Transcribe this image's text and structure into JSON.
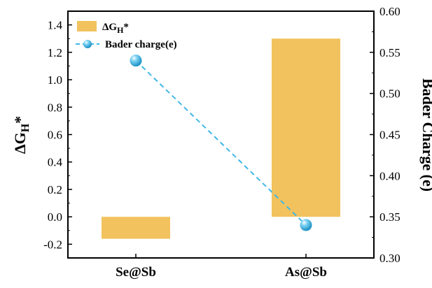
{
  "chart_data": {
    "type": "bar",
    "categories": [
      "Se@Sb",
      "As@Sb"
    ],
    "series": [
      {
        "name": "ΔG_H*",
        "chart": "bar",
        "axis": "left",
        "color": "#f2c25e",
        "values": [
          -0.16,
          1.3
        ]
      },
      {
        "name": "Bader charge(e)",
        "chart": "line",
        "axis": "right",
        "line_style": "dashed",
        "marker": "sphere",
        "color": "#41b8e6",
        "values": [
          0.54,
          0.34
        ]
      }
    ],
    "ylabel_left": "ΔG_H*",
    "ylabel_right": "Bader Charge (e)",
    "ylim_left": [
      -0.3,
      1.5
    ],
    "yticks_left": [
      "-0.2",
      "0.0",
      "0.2",
      "0.4",
      "0.6",
      "0.8",
      "1.0",
      "1.2",
      "1.4"
    ],
    "ylim_right": [
      0.3,
      0.6
    ],
    "yticks_right": [
      "0.30",
      "0.35",
      "0.40",
      "0.45",
      "0.50",
      "0.55",
      "0.60"
    ],
    "legend_position": "top-left",
    "grid": false
  }
}
